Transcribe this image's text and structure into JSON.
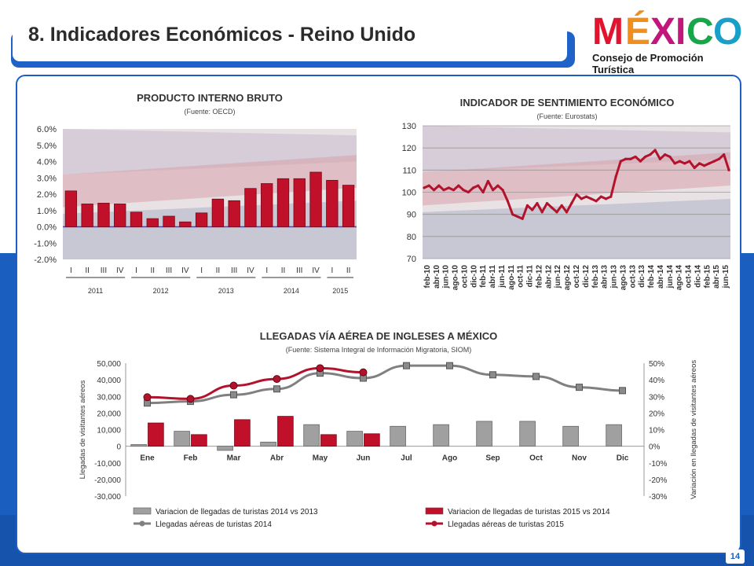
{
  "header": {
    "title": "8. Indicadores Económicos  - Reino Unido"
  },
  "logo": {
    "word": "MÉXICO",
    "subtitle": "Consejo de Promoción Turística"
  },
  "page_number": "14",
  "colors": {
    "brand_blue": "#1d5fc4",
    "bar_red": "#c0102a",
    "bar_gray": "#9a9a9a",
    "line_gray": "#777777"
  },
  "gdp": {
    "title": "PRODUCTO INTERNO BRUTO",
    "source": "(Fuente: OECD)"
  },
  "sentiment": {
    "title": "INDICADOR DE SENTIMIENTO ECONÓMICO",
    "source": "(Fuente: Eurostats)"
  },
  "arrivals": {
    "title": "LLEGADAS VÍA AÉREA DE INGLESES A MÉXICO",
    "source": "(Fuente: Sistema Integral de Información Migratoria, SIOM)"
  },
  "chart_data": [
    {
      "type": "bar",
      "title": "PRODUCTO INTERNO BRUTO",
      "subtitle": "(Fuente: OECD)",
      "categories": [
        "I",
        "II",
        "III",
        "IV",
        "I",
        "II",
        "III",
        "IV",
        "I",
        "II",
        "III",
        "IV",
        "I",
        "II",
        "III",
        "IV",
        "I",
        "II"
      ],
      "groups": [
        {
          "label": "2011",
          "count": 4
        },
        {
          "label": "2012",
          "count": 4
        },
        {
          "label": "2013",
          "count": 4
        },
        {
          "label": "2014",
          "count": 4
        },
        {
          "label": "2015",
          "count": 2
        }
      ],
      "values": [
        2.2,
        1.4,
        1.45,
        1.4,
        0.9,
        0.5,
        0.65,
        0.3,
        0.85,
        1.7,
        1.6,
        2.35,
        2.65,
        2.95,
        2.95,
        3.35,
        2.85,
        2.55
      ],
      "ylim": [
        -2.0,
        6.0
      ],
      "yticks": [
        "6.0%",
        "5.0%",
        "4.0%",
        "3.0%",
        "2.0%",
        "1.0%",
        "0.0%",
        "-1.0%",
        "-2.0%"
      ],
      "yticks_values": [
        6,
        5,
        4,
        3,
        2,
        1,
        0,
        -1,
        -2
      ]
    },
    {
      "type": "line",
      "title": "INDICADOR DE SENTIMIENTO ECONÓMICO",
      "subtitle": "(Fuente: Eurostats)",
      "x_labels": [
        "feb-10",
        "abr-10",
        "jun-10",
        "ago-10",
        "oct-10",
        "dic-10",
        "feb-11",
        "abr-11",
        "jun-11",
        "ago-11",
        "oct-11",
        "dic-11",
        "feb-12",
        "abr-12",
        "jun-12",
        "ago-12",
        "oct-12",
        "dic-12",
        "feb-13",
        "abr-13",
        "jun-13",
        "ago-13",
        "oct-13",
        "dic-13",
        "feb-14",
        "abr-14",
        "jun-14",
        "ago-14",
        "oct-14",
        "dic-14",
        "feb-15",
        "abr-15",
        "jun-15"
      ],
      "values": [
        102,
        103,
        101,
        103,
        101,
        102,
        101,
        103,
        101,
        100,
        102,
        103,
        100,
        105,
        101,
        103,
        101,
        96,
        90,
        89,
        88,
        94,
        92,
        95,
        91,
        95,
        93,
        91,
        94,
        91,
        95,
        99,
        97,
        98,
        97,
        96,
        98,
        97,
        98,
        107,
        114,
        115,
        115,
        116,
        114,
        116,
        117,
        119,
        115,
        117,
        116,
        113,
        114,
        113,
        114,
        111,
        113,
        112,
        113,
        114,
        115,
        117,
        110
      ],
      "ylim": [
        70,
        130
      ],
      "yticks": [
        130,
        120,
        110,
        100,
        90,
        80,
        70
      ]
    },
    {
      "type": "bar+line",
      "title": "LLEGADAS VÍA AÉREA DE INGLESES A MÉXICO",
      "subtitle": "(Fuente: Sistema Integral de Información Migratoria, SIOM)",
      "categories": [
        "Ene",
        "Feb",
        "Mar",
        "Abr",
        "May",
        "Jun",
        "Jul",
        "Ago",
        "Sep",
        "Oct",
        "Nov",
        "Dic"
      ],
      "ylabel": "Llegadas de visitantes aéreos",
      "y2label": "Variación en llegadas de visitantes aéreos",
      "ylim": [
        -30000,
        50000
      ],
      "y2lim": [
        -0.3,
        0.5
      ],
      "yticks": [
        "50,000",
        "40,000",
        "30,000",
        "20,000",
        "10,000",
        "0",
        "-10,000",
        "-20,000",
        "-30,000"
      ],
      "y2ticks": [
        "50%",
        "40%",
        "30%",
        "20%",
        "10%",
        "0%",
        "-10%",
        "-20%",
        "-30%"
      ],
      "series": [
        {
          "name": "Variacion de llegadas de turistas 2014 vs 2013",
          "kind": "bar",
          "axis": "right",
          "values": [
            0.01,
            0.09,
            -0.025,
            0.025,
            0.13,
            0.09,
            0.12,
            0.13,
            0.15,
            0.15,
            0.12,
            0.13
          ]
        },
        {
          "name": "Variacion de llegadas de turistas 2015 vs 2014",
          "kind": "bar",
          "axis": "right",
          "values": [
            0.14,
            0.07,
            0.16,
            0.18,
            0.07,
            0.075,
            null,
            null,
            null,
            null,
            null,
            null
          ]
        },
        {
          "name": "Llegadas aéreas de turistas 2014",
          "kind": "line",
          "axis": "left",
          "values": [
            26000,
            27000,
            31000,
            34500,
            44000,
            41000,
            48500,
            48500,
            43000,
            42000,
            35500,
            33500
          ]
        },
        {
          "name": "Llegadas aéreas de turistas 2015",
          "kind": "line",
          "axis": "left",
          "values": [
            29500,
            28500,
            36500,
            40500,
            47000,
            44500,
            null,
            null,
            null,
            null,
            null,
            null
          ]
        }
      ]
    }
  ]
}
